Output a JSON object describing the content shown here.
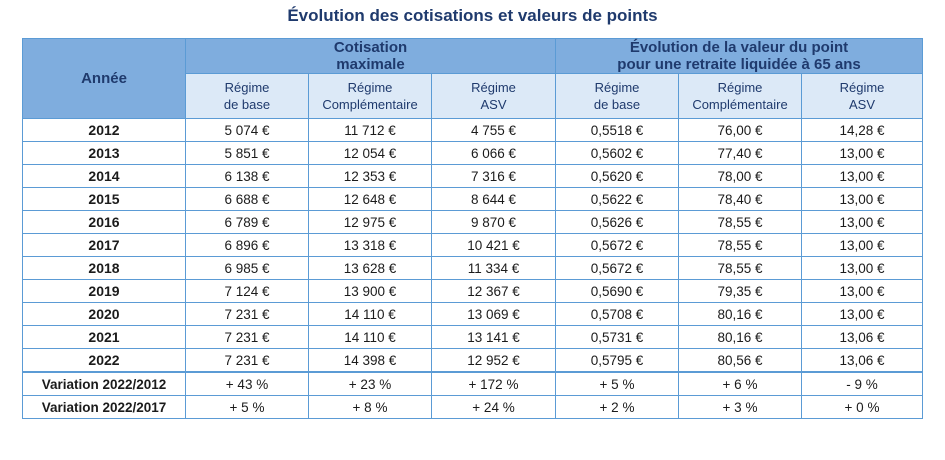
{
  "title": "Évolution des cotisations et valeurs de points",
  "headers": {
    "year": "Année",
    "group1_line1": "Cotisation",
    "group1_line2": "maximale",
    "group2_line1": "Évolution de la valeur du point",
    "group2_line2": "pour une retraite liquidée à 65 ans",
    "sub": [
      {
        "l1": "Régime",
        "l2": "de base"
      },
      {
        "l1": "Régime",
        "l2": "Complémentaire"
      },
      {
        "l1": "Régime",
        "l2": "ASV"
      },
      {
        "l1": "Régime",
        "l2": "de base"
      },
      {
        "l1": "Régime",
        "l2": "Complémentaire"
      },
      {
        "l1": "Régime",
        "l2": "ASV"
      }
    ]
  },
  "rows": [
    {
      "year": "2012",
      "c": [
        "5 074 €",
        "11 712 €",
        "4 755 €",
        "0,5518 €",
        "76,00 €",
        "14,28 €"
      ]
    },
    {
      "year": "2013",
      "c": [
        "5 851 €",
        "12 054 €",
        "6 066 €",
        "0,5602 €",
        "77,40 €",
        "13,00 €"
      ]
    },
    {
      "year": "2014",
      "c": [
        "6 138 €",
        "12 353 €",
        "7 316 €",
        "0,5620 €",
        "78,00 €",
        "13,00 €"
      ]
    },
    {
      "year": "2015",
      "c": [
        "6 688 €",
        "12 648 €",
        "8 644 €",
        "0,5622 €",
        "78,40 €",
        "13,00 €"
      ]
    },
    {
      "year": "2016",
      "c": [
        "6 789 €",
        "12 975 €",
        "9 870 €",
        "0,5626 €",
        "78,55 €",
        "13,00 €"
      ]
    },
    {
      "year": "2017",
      "c": [
        "6 896 €",
        "13 318 €",
        "10 421 €",
        "0,5672 €",
        "78,55 €",
        "13,00 €"
      ]
    },
    {
      "year": "2018",
      "c": [
        "6 985 €",
        "13 628 €",
        "11 334 €",
        "0,5672 €",
        "78,55 €",
        "13,00 €"
      ]
    },
    {
      "year": "2019",
      "c": [
        "7 124 €",
        "13 900 €",
        "12 367 €",
        "0,5690 €",
        "79,35 €",
        "13,00 €"
      ]
    },
    {
      "year": "2020",
      "c": [
        "7 231 €",
        "14 110 €",
        "13 069 €",
        "0,5708 €",
        "80,16 €",
        "13,00 €"
      ]
    },
    {
      "year": "2021",
      "c": [
        "7 231 €",
        "14 110 €",
        "13 141 €",
        "0,5731 €",
        "80,16 €",
        "13,06 €"
      ]
    },
    {
      "year": "2022",
      "c": [
        "7 231 €",
        "14 398 €",
        "12 952 €",
        "0,5795 €",
        "80,56 €",
        "13,06 €"
      ]
    },
    {
      "year": "Variation 2022/2012",
      "c": [
        "+ 43 %",
        "+ 23 %",
        "+ 172 %",
        "+ 5 %",
        "+ 6 %",
        "- 9 %"
      ]
    },
    {
      "year": "Variation 2022/2017",
      "c": [
        "+ 5 %",
        "+ 8 %",
        "+ 24 %",
        "+ 2 %",
        "+ 3 %",
        "+ 0 %"
      ]
    }
  ]
}
